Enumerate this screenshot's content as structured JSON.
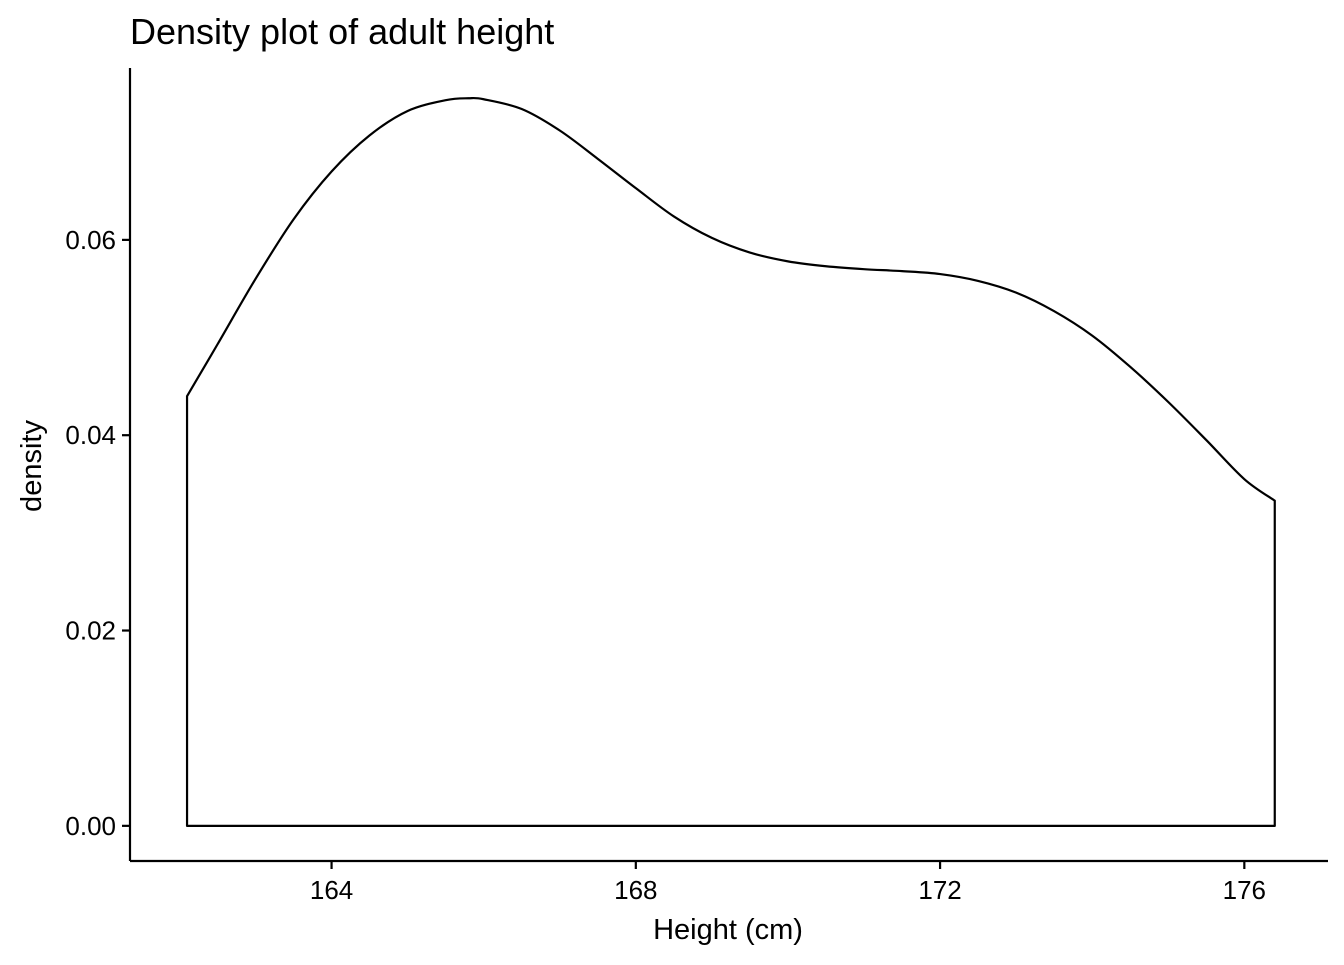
{
  "chart_data": {
    "type": "area",
    "title": "Density plot of adult height",
    "xlabel": "Height (cm)",
    "ylabel": "density",
    "xlim": [
      161.35,
      177.1
    ],
    "ylim": [
      -0.0036,
      0.0776
    ],
    "x_ticks": [
      164,
      168,
      172,
      176
    ],
    "y_ticks": [
      0.0,
      0.02,
      0.04,
      0.06
    ],
    "x_tick_labels": [
      "164",
      "168",
      "172",
      "176"
    ],
    "y_tick_labels": [
      "0.00",
      "0.02",
      "0.04",
      "0.06"
    ],
    "grid": false,
    "legend": "none",
    "line_color": "#000000",
    "fill_color": "none",
    "series": [
      {
        "x": [
          162.1,
          162.5,
          163.0,
          163.5,
          164.0,
          164.5,
          165.0,
          165.5,
          165.8,
          166.0,
          166.5,
          167.0,
          167.5,
          168.0,
          168.5,
          169.0,
          169.5,
          170.0,
          170.5,
          171.0,
          171.5,
          172.0,
          172.5,
          173.0,
          173.5,
          174.0,
          174.5,
          175.0,
          175.5,
          176.0,
          176.4
        ],
        "y": [
          0.044,
          0.0493,
          0.056,
          0.0621,
          0.067,
          0.0707,
          0.0732,
          0.0743,
          0.0745,
          0.0744,
          0.0734,
          0.0712,
          0.0683,
          0.0653,
          0.0624,
          0.0602,
          0.0587,
          0.0578,
          0.0573,
          0.057,
          0.0568,
          0.0565,
          0.0558,
          0.0546,
          0.0527,
          0.0502,
          0.047,
          0.0434,
          0.0395,
          0.0355,
          0.0333
        ]
      }
    ]
  }
}
